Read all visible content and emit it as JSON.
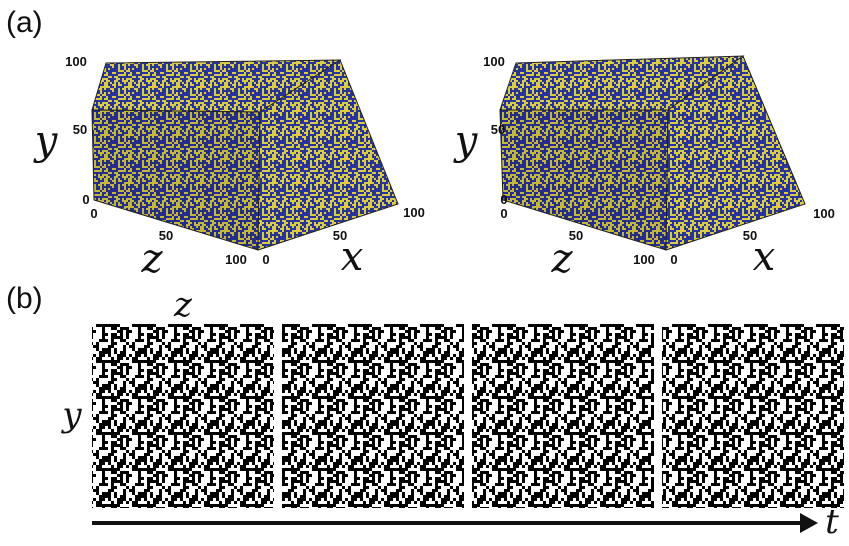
{
  "panel_a": {
    "label": "(a)",
    "cubes": [
      {
        "y_label": "y",
        "z_label": "z",
        "x_label": "x",
        "y_ticks": [
          "100",
          "50",
          "0"
        ],
        "z_ticks": [
          "0",
          "50",
          "100"
        ],
        "x_ticks": [
          "0",
          "50",
          "100"
        ]
      },
      {
        "y_label": "y",
        "z_label": "z",
        "x_label": "x",
        "y_ticks": [
          "100",
          "50",
          "0"
        ],
        "z_ticks": [
          "0",
          "50",
          "100"
        ],
        "x_ticks": [
          "0",
          "50",
          "100"
        ]
      }
    ],
    "colors": {
      "blue": "#2a3492",
      "yellow": "#d8cc4a"
    }
  },
  "panel_b": {
    "label": "(b)",
    "z_label": "z",
    "y_label": "y",
    "t_label": "t",
    "frame_count": 4,
    "colors": {
      "black": "#000000",
      "white": "#ffffff"
    }
  }
}
